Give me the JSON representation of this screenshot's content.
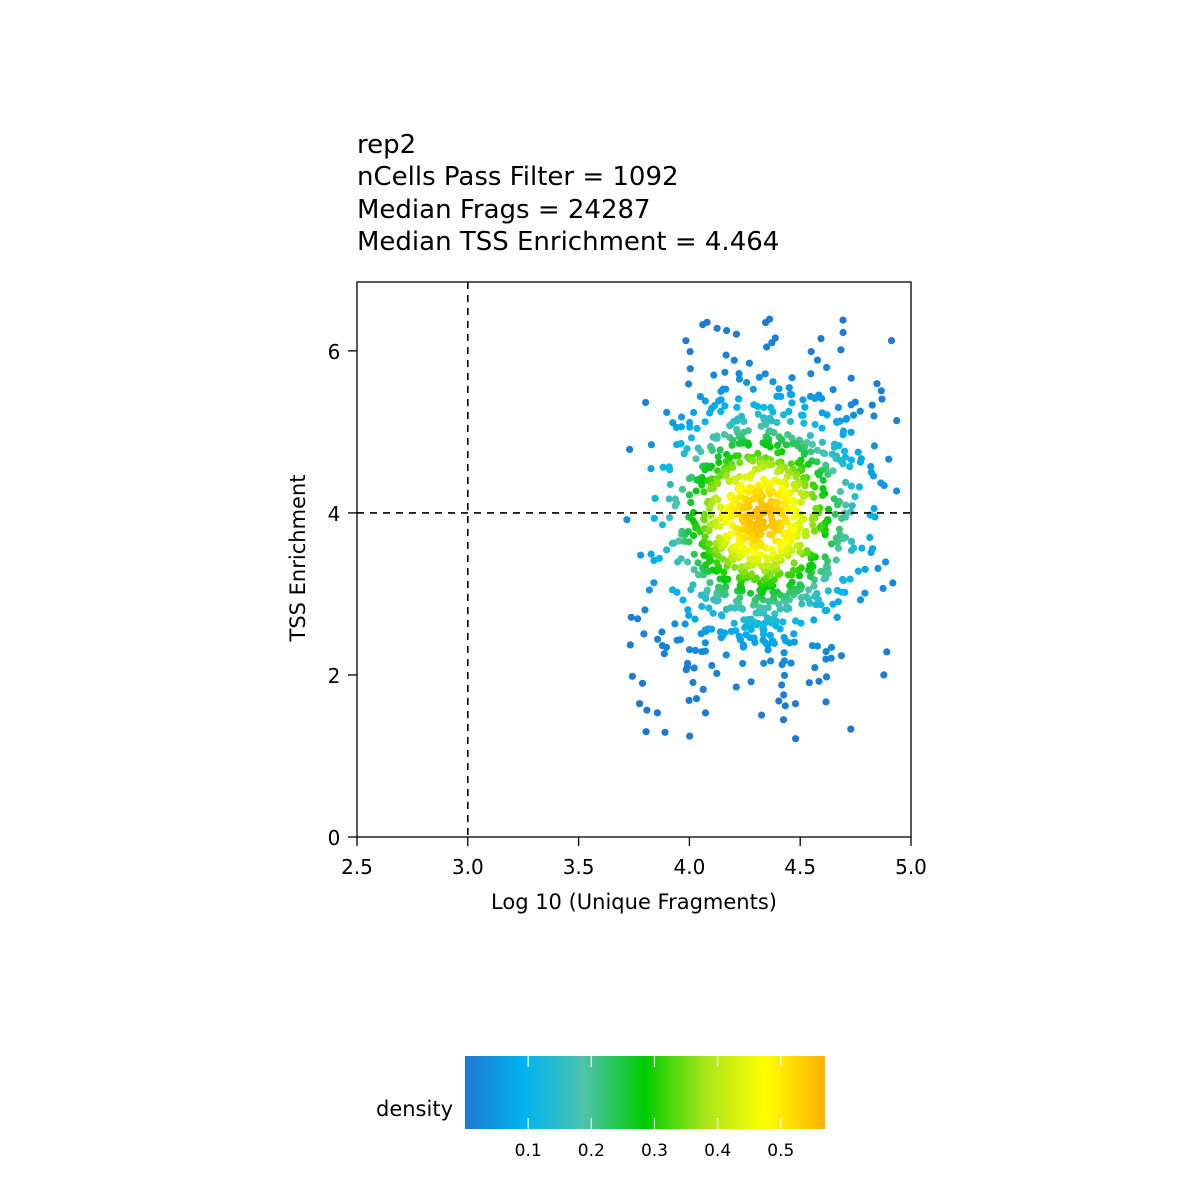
{
  "chart_data": {
    "type": "scatter",
    "title_lines": [
      "rep2",
      "nCells Pass Filter = 1092",
      "Median Frags = 24287",
      "Median TSS Enrichment = 4.464"
    ],
    "xlabel": "Log 10 (Unique Fragments)",
    "ylabel": "TSS Enrichment",
    "xlim": [
      2.5,
      5.0
    ],
    "ylim": [
      0,
      6.85
    ],
    "xticks": [
      "2.5",
      "3.0",
      "3.5",
      "4.0",
      "4.5",
      "5.0"
    ],
    "yticks": [
      "0",
      "2",
      "4",
      "6"
    ],
    "cutoff_lines": {
      "x": 3.0,
      "y": 4.0
    },
    "color_by": "density",
    "n_points": 1092,
    "density_center": {
      "x": 4.32,
      "y": 3.95
    },
    "legend": {
      "title": "density",
      "ticks": [
        "0.1",
        "0.2",
        "0.3",
        "0.4",
        "0.5"
      ],
      "range": [
        0.0,
        0.57
      ],
      "colors": [
        "#1f78d1",
        "#00b4f0",
        "#4ec3a8",
        "#00cc00",
        "#a8e61a",
        "#ffff00",
        "#ffb000"
      ]
    },
    "grid": false
  }
}
